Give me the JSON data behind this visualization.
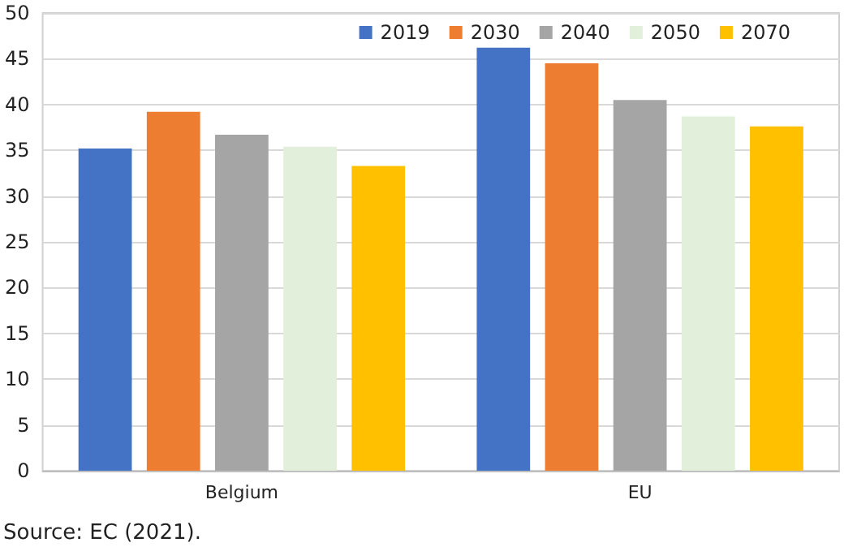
{
  "chart_data": {
    "type": "bar",
    "categories": [
      "Belgium",
      "EU"
    ],
    "series": [
      {
        "name": "2019",
        "color": "#4472c4",
        "values": [
          35.2,
          46.2
        ]
      },
      {
        "name": "2030",
        "color": "#ed7d31",
        "values": [
          39.2,
          44.5
        ]
      },
      {
        "name": "2040",
        "color": "#a5a5a5",
        "values": [
          36.7,
          40.5
        ]
      },
      {
        "name": "2050",
        "color": "#e2efda",
        "values": [
          35.4,
          38.7
        ]
      },
      {
        "name": "2070",
        "color": "#ffc000",
        "values": [
          33.3,
          37.6
        ]
      }
    ],
    "ylim": [
      0,
      50
    ],
    "yticks": [
      0,
      5,
      10,
      15,
      20,
      25,
      30,
      35,
      40,
      45,
      50
    ],
    "grid": "y",
    "legend": "top right",
    "annotations": [
      "Source: EC (2021)."
    ]
  }
}
